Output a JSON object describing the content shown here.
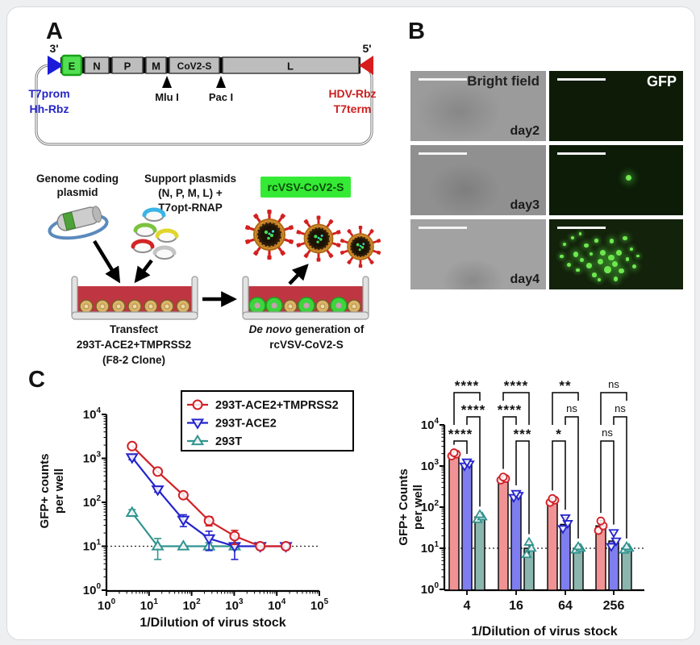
{
  "panelA": {
    "label": "A",
    "genome": {
      "three_prime": "3'",
      "five_prime": "5'",
      "genes": [
        "E",
        "N",
        "P",
        "M",
        "CoV2-S",
        "L"
      ],
      "left_labels": [
        "T7prom",
        "Hh-Rbz"
      ],
      "right_labels": [
        "HDV-Rbz",
        "T7term"
      ],
      "restriction_sites": [
        "Mlu I",
        "Pac I"
      ],
      "colors": {
        "promoter_arrow": "#1c1cd8",
        "terminator_arrow": "#d81c1c",
        "e_gene_fill": "#52e052",
        "gene_box_fill": "#bdbdbd",
        "left_text": "#2626c4",
        "right_text": "#cc2020"
      }
    },
    "workflow": {
      "genome_plasmid": [
        "Genome coding",
        "plasmid"
      ],
      "support_plasmids": [
        "Support plasmids",
        "(N, P, M, L) +",
        "T7opt-RNAP"
      ],
      "product_badge": "rcVSV-CoV2-S",
      "badge_color": "#35ea35",
      "transfect": [
        "Transfect",
        "293T-ACE2+TMPRSS2",
        "(F8-2 Clone)"
      ],
      "denovo": {
        "italic": "De novo",
        "rest": "generation of",
        "line2": "rcVSV-CoV2-S"
      }
    }
  },
  "panelB": {
    "label": "B",
    "column_headers": [
      "Bright field",
      "GFP"
    ],
    "row_labels": [
      "day2",
      "day3",
      "day4"
    ],
    "gfp_dots": {
      "day2": [],
      "day3": [
        [
          0.57,
          0.42,
          3.5
        ]
      ],
      "day4": [
        [
          0.08,
          0.5,
          2
        ],
        [
          0.1,
          0.33,
          2
        ],
        [
          0.13,
          0.62,
          2.5
        ],
        [
          0.16,
          0.24,
          2
        ],
        [
          0.18,
          0.46,
          3
        ],
        [
          0.2,
          0.7,
          2
        ],
        [
          0.23,
          0.55,
          2.2
        ],
        [
          0.26,
          0.34,
          2.5
        ],
        [
          0.28,
          0.62,
          3
        ],
        [
          0.3,
          0.47,
          2
        ],
        [
          0.32,
          0.76,
          2.5
        ],
        [
          0.34,
          0.28,
          2
        ],
        [
          0.36,
          0.56,
          3.5
        ],
        [
          0.38,
          0.44,
          3
        ],
        [
          0.41,
          0.67,
          4
        ],
        [
          0.44,
          0.5,
          3.5
        ],
        [
          0.45,
          0.28,
          2.5
        ],
        [
          0.47,
          0.6,
          3.2
        ],
        [
          0.5,
          0.44,
          3
        ],
        [
          0.52,
          0.7,
          3
        ],
        [
          0.55,
          0.24,
          2.5
        ],
        [
          0.57,
          0.54,
          2.2
        ],
        [
          0.6,
          0.4,
          2
        ],
        [
          0.62,
          0.64,
          2.5
        ],
        [
          0.36,
          0.84,
          2
        ],
        [
          0.48,
          0.82,
          2.5
        ],
        [
          0.65,
          0.5,
          1.8
        ],
        [
          0.22,
          0.18,
          1.8
        ]
      ]
    }
  },
  "panelC": {
    "label": "C"
  },
  "chart_data": [
    {
      "type": "line",
      "xlabel": "1/Dilution of virus stock",
      "ylabel": "GFP+ counts per well",
      "ylabel_lines": [
        "GFP+ counts",
        "per well"
      ],
      "xscale": "log",
      "yscale": "log",
      "xlim": [
        1,
        100000
      ],
      "ylim": [
        1,
        10000
      ],
      "reference_line_y": 10,
      "legend_position": "top-right",
      "x": [
        4,
        16,
        64,
        256,
        1024,
        4096,
        16384
      ],
      "series": [
        {
          "name": "293T-ACE2+TMPRSS2",
          "color": "#d22027",
          "marker": "circle",
          "values": [
            1900,
            500,
            145,
            38,
            17,
            10,
            10
          ],
          "err": [
            180,
            45,
            20,
            9,
            6,
            0,
            0
          ]
        },
        {
          "name": "293T-ACE2",
          "color": "#2423cd",
          "marker": "triangle-down",
          "values": [
            1050,
            195,
            40,
            15,
            10,
            10,
            10
          ],
          "err": [
            120,
            25,
            12,
            7,
            5,
            0,
            0
          ]
        },
        {
          "name": "293T",
          "color": "#31948f",
          "marker": "triangle-up",
          "values": [
            58,
            10,
            10,
            10,
            10
          ],
          "err": [
            10,
            5,
            0,
            2,
            0
          ]
        }
      ]
    },
    {
      "type": "bar",
      "xlabel": "1/Dilution of virus stock",
      "ylabel": "GFP+ Counts per well",
      "ylabel_lines": [
        "GFP+ Counts",
        "per well"
      ],
      "yscale": "log",
      "ylim": [
        1,
        10000
      ],
      "reference_line_y": 10,
      "categories": [
        "4",
        "16",
        "64",
        "256"
      ],
      "series": [
        {
          "name": "293T-ACE2+TMPRSS2",
          "fill": "#f19394",
          "edge": "#000000",
          "marker": "circle",
          "marker_color": "#d22027",
          "values": [
            1900,
            490,
            145,
            35
          ],
          "points": [
            [
              1750,
              1950,
              2100
            ],
            [
              455,
              495,
              540
            ],
            [
              130,
              148,
              162
            ],
            [
              27,
              35,
              46
            ]
          ]
        },
        {
          "name": "293T-ACE2",
          "fill": "#7f7ef0",
          "edge": "#000000",
          "marker": "triangle-down",
          "marker_color": "#2423cd",
          "values": [
            1100,
            190,
            38,
            15
          ],
          "points": [
            [
              1000,
              1120,
              1250
            ],
            [
              172,
              192,
              215
            ],
            [
              30,
              40,
              55
            ],
            [
              11,
              15,
              24
            ]
          ]
        },
        {
          "name": "293T",
          "fill": "#8bb6ae",
          "edge": "#000000",
          "marker": "triangle-up",
          "marker_color": "#31948f",
          "values": [
            58,
            10,
            10,
            10
          ],
          "points": [
            [
              50,
              58,
              66
            ],
            [
              7,
              10,
              14
            ],
            [
              9,
              10,
              11
            ],
            [
              9,
              10,
              11
            ]
          ]
        }
      ],
      "significance": [
        {
          "category": "4",
          "comparisons": [
            {
              "pair": [
                0,
                1
              ],
              "label": "****",
              "level": 1
            },
            {
              "pair": [
                1,
                2
              ],
              "label": "****",
              "level": 2
            },
            {
              "pair": [
                0,
                2
              ],
              "label": "****",
              "level": 3
            }
          ]
        },
        {
          "category": "16",
          "comparisons": [
            {
              "pair": [
                1,
                2
              ],
              "label": "***",
              "level": 1
            },
            {
              "pair": [
                0,
                1
              ],
              "label": "****",
              "level": 2
            },
            {
              "pair": [
                0,
                2
              ],
              "label": "****",
              "level": 3
            }
          ]
        },
        {
          "category": "64",
          "comparisons": [
            {
              "pair": [
                0,
                1
              ],
              "label": "*",
              "level": 1
            },
            {
              "pair": [
                1,
                2
              ],
              "label": "ns",
              "level": 2
            },
            {
              "pair": [
                0,
                2
              ],
              "label": "**",
              "level": 3
            }
          ]
        },
        {
          "category": "256",
          "comparisons": [
            {
              "pair": [
                0,
                1
              ],
              "label": "ns",
              "level": 1
            },
            {
              "pair": [
                1,
                2
              ],
              "label": "ns",
              "level": 2
            },
            {
              "pair": [
                0,
                2
              ],
              "label": "ns",
              "level": 3
            }
          ]
        }
      ]
    }
  ]
}
